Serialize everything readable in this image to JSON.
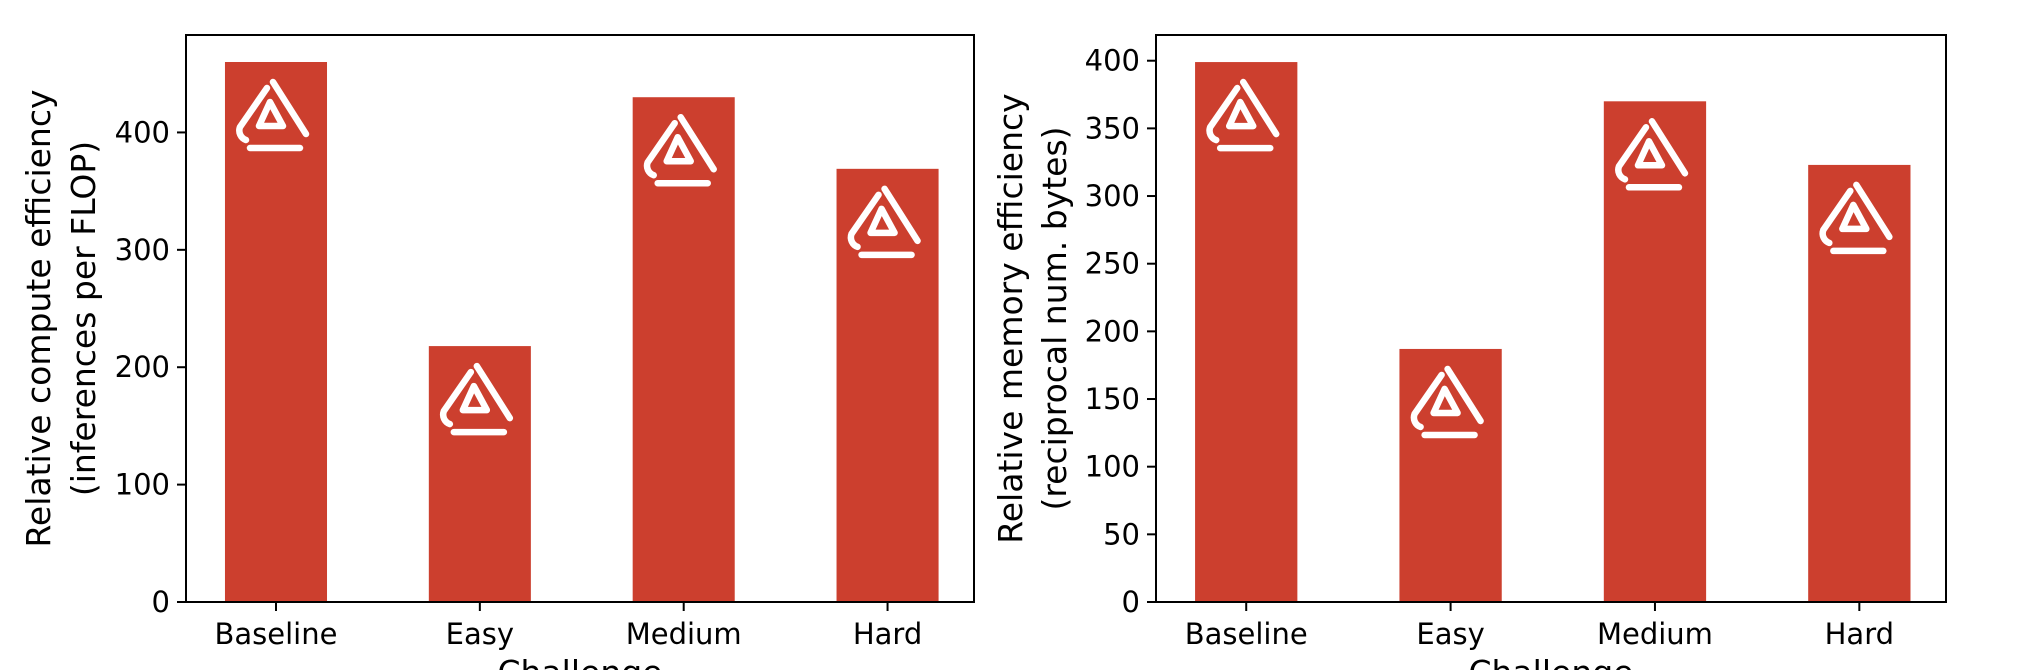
{
  "colors": {
    "bar": "#CC3F2E",
    "logo": "#FFFFFF",
    "axis": "#000000"
  },
  "icon": "brand-logo-icon",
  "chart_data": [
    {
      "type": "bar",
      "categories": [
        "Baseline",
        "Easy",
        "Medium",
        "Hard"
      ],
      "values": [
        460,
        218,
        430,
        369
      ],
      "xlabel": "Challenge",
      "ylabel": [
        "Relative compute efficiency",
        "(inferences per FLOP)"
      ],
      "yticks": [
        0,
        100,
        200,
        300,
        400
      ],
      "ylim": [
        0,
        483
      ],
      "grid": false
    },
    {
      "type": "bar",
      "categories": [
        "Baseline",
        "Easy",
        "Medium",
        "Hard"
      ],
      "values": [
        399,
        187,
        370,
        323
      ],
      "xlabel": "Challenge",
      "ylabel": [
        "Relative memory efficiency",
        "(reciprocal num. bytes)"
      ],
      "yticks": [
        0,
        50,
        100,
        150,
        200,
        250,
        300,
        350,
        400
      ],
      "ylim": [
        0,
        419
      ],
      "grid": false
    }
  ]
}
